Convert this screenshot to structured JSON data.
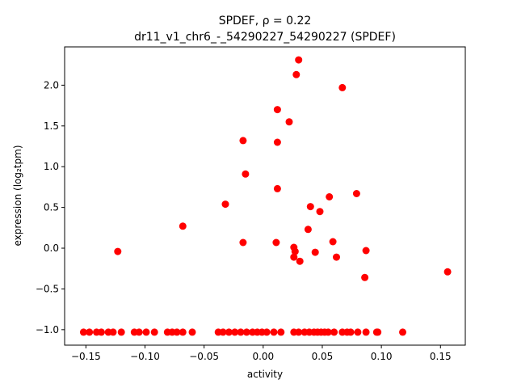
{
  "chart_data": {
    "type": "scatter",
    "title_line1": "SPDEF, ρ = 0.22",
    "title_line2": "dr11_v1_chr6_-_54290227_54290227 (SPDEF)",
    "xlabel": "activity",
    "ylabel": "expression (log₂tpm)",
    "xlim": [
      -0.168,
      0.171
    ],
    "ylim": [
      -1.19,
      2.47
    ],
    "xticks": [
      -0.15,
      -0.1,
      -0.05,
      0.0,
      0.05,
      0.1,
      0.15
    ],
    "xtick_labels": [
      "−0.15",
      "−0.10",
      "−0.05",
      "0.00",
      "0.05",
      "0.10",
      "0.15"
    ],
    "yticks": [
      -1.0,
      -0.5,
      0.0,
      0.5,
      1.0,
      1.5,
      2.0
    ],
    "ytick_labels": [
      "−1.0",
      "−0.5",
      "0.0",
      "0.5",
      "1.0",
      "1.5",
      "2.0"
    ],
    "grid": false,
    "marker_color": "#ff0000",
    "points": [
      {
        "x": 0.03,
        "y": 2.31
      },
      {
        "x": 0.028,
        "y": 2.13
      },
      {
        "x": 0.067,
        "y": 1.97
      },
      {
        "x": 0.012,
        "y": 1.7
      },
      {
        "x": 0.022,
        "y": 1.55
      },
      {
        "x": -0.017,
        "y": 1.32
      },
      {
        "x": 0.012,
        "y": 1.3
      },
      {
        "x": -0.015,
        "y": 0.91
      },
      {
        "x": 0.012,
        "y": 0.73
      },
      {
        "x": 0.079,
        "y": 0.67
      },
      {
        "x": 0.056,
        "y": 0.63
      },
      {
        "x": -0.032,
        "y": 0.54
      },
      {
        "x": 0.04,
        "y": 0.51
      },
      {
        "x": 0.048,
        "y": 0.45
      },
      {
        "x": -0.068,
        "y": 0.27
      },
      {
        "x": 0.038,
        "y": 0.23
      },
      {
        "x": -0.017,
        "y": 0.07
      },
      {
        "x": 0.011,
        "y": 0.07
      },
      {
        "x": 0.059,
        "y": 0.08
      },
      {
        "x": 0.026,
        "y": 0.01
      },
      {
        "x": -0.123,
        "y": -0.04
      },
      {
        "x": 0.027,
        "y": -0.04
      },
      {
        "x": 0.044,
        "y": -0.05
      },
      {
        "x": 0.087,
        "y": -0.03
      },
      {
        "x": 0.026,
        "y": -0.11
      },
      {
        "x": 0.031,
        "y": -0.16
      },
      {
        "x": 0.062,
        "y": -0.11
      },
      {
        "x": 0.156,
        "y": -0.29
      },
      {
        "x": 0.086,
        "y": -0.36
      },
      {
        "x": -0.152,
        "y": -1.03
      },
      {
        "x": -0.147,
        "y": -1.03
      },
      {
        "x": -0.141,
        "y": -1.03
      },
      {
        "x": -0.137,
        "y": -1.03
      },
      {
        "x": -0.131,
        "y": -1.03
      },
      {
        "x": -0.127,
        "y": -1.03
      },
      {
        "x": -0.12,
        "y": -1.03
      },
      {
        "x": -0.109,
        "y": -1.03
      },
      {
        "x": -0.105,
        "y": -1.03
      },
      {
        "x": -0.099,
        "y": -1.03
      },
      {
        "x": -0.092,
        "y": -1.03
      },
      {
        "x": -0.081,
        "y": -1.03
      },
      {
        "x": -0.077,
        "y": -1.03
      },
      {
        "x": -0.073,
        "y": -1.03
      },
      {
        "x": -0.068,
        "y": -1.03
      },
      {
        "x": -0.06,
        "y": -1.03
      },
      {
        "x": -0.038,
        "y": -1.03
      },
      {
        "x": -0.034,
        "y": -1.03
      },
      {
        "x": -0.029,
        "y": -1.03
      },
      {
        "x": -0.024,
        "y": -1.03
      },
      {
        "x": -0.019,
        "y": -1.03
      },
      {
        "x": -0.014,
        "y": -1.03
      },
      {
        "x": -0.009,
        "y": -1.03
      },
      {
        "x": -0.005,
        "y": -1.03
      },
      {
        "x": -0.001,
        "y": -1.03
      },
      {
        "x": 0.003,
        "y": -1.03
      },
      {
        "x": 0.009,
        "y": -1.03
      },
      {
        "x": 0.015,
        "y": -1.03
      },
      {
        "x": 0.026,
        "y": -1.03
      },
      {
        "x": 0.03,
        "y": -1.03
      },
      {
        "x": 0.035,
        "y": -1.03
      },
      {
        "x": 0.039,
        "y": -1.03
      },
      {
        "x": 0.043,
        "y": -1.03
      },
      {
        "x": 0.046,
        "y": -1.03
      },
      {
        "x": 0.049,
        "y": -1.03
      },
      {
        "x": 0.052,
        "y": -1.03
      },
      {
        "x": 0.055,
        "y": -1.03
      },
      {
        "x": 0.06,
        "y": -1.03
      },
      {
        "x": 0.067,
        "y": -1.03
      },
      {
        "x": 0.071,
        "y": -1.03
      },
      {
        "x": 0.074,
        "y": -1.03
      },
      {
        "x": 0.08,
        "y": -1.03
      },
      {
        "x": 0.087,
        "y": -1.03
      },
      {
        "x": 0.096,
        "y": -1.03
      },
      {
        "x": 0.097,
        "y": -1.03
      },
      {
        "x": 0.118,
        "y": -1.03
      }
    ]
  }
}
